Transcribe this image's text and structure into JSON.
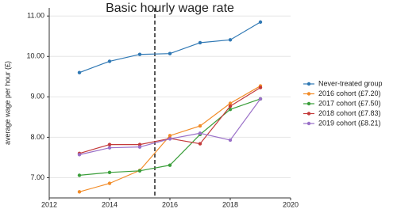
{
  "chart_data": {
    "type": "line",
    "title": "Basic hourly wage rate",
    "y_label": "average wage per hour (£)",
    "x": [
      2013,
      2014,
      2015,
      2016,
      2017,
      2018,
      2019
    ],
    "xlim": [
      2012,
      2020
    ],
    "xticks": [
      2012,
      2014,
      2016,
      2018,
      2020
    ],
    "ylim": [
      6.5,
      11.2
    ],
    "yticks": [
      {
        "value": 7,
        "label": "7.00"
      },
      {
        "value": 8,
        "label": "8.00"
      },
      {
        "value": 9,
        "label": "9.00"
      },
      {
        "value": 10,
        "label": "10.00"
      },
      {
        "value": 11,
        "label": "11.00"
      }
    ],
    "grid": true,
    "legend": "right",
    "vline": 2015.5,
    "vline_style": "dashed",
    "series": [
      {
        "name": "Never-treated group",
        "color": "#2f78b4",
        "values": [
          9.6,
          9.88,
          10.05,
          10.07,
          10.34,
          10.41,
          10.85
        ]
      },
      {
        "name": "2016 cohort (£7.20)",
        "color": "#f28c28",
        "values": [
          6.65,
          6.86,
          7.18,
          8.04,
          8.28,
          8.84,
          9.27
        ]
      },
      {
        "name": "2017 cohort (£7.50)",
        "color": "#3a9e3a",
        "values": [
          7.06,
          7.13,
          7.17,
          7.31,
          8.07,
          8.69,
          8.95
        ]
      },
      {
        "name": "2018 cohort (£7.83)",
        "color": "#c43a3a",
        "values": [
          7.6,
          7.82,
          7.82,
          7.97,
          7.84,
          8.77,
          9.23
        ]
      },
      {
        "name": "2019 cohort (£8.21)",
        "color": "#9a70c8",
        "values": [
          7.57,
          7.74,
          7.76,
          7.96,
          8.1,
          7.93,
          8.95
        ]
      }
    ]
  }
}
